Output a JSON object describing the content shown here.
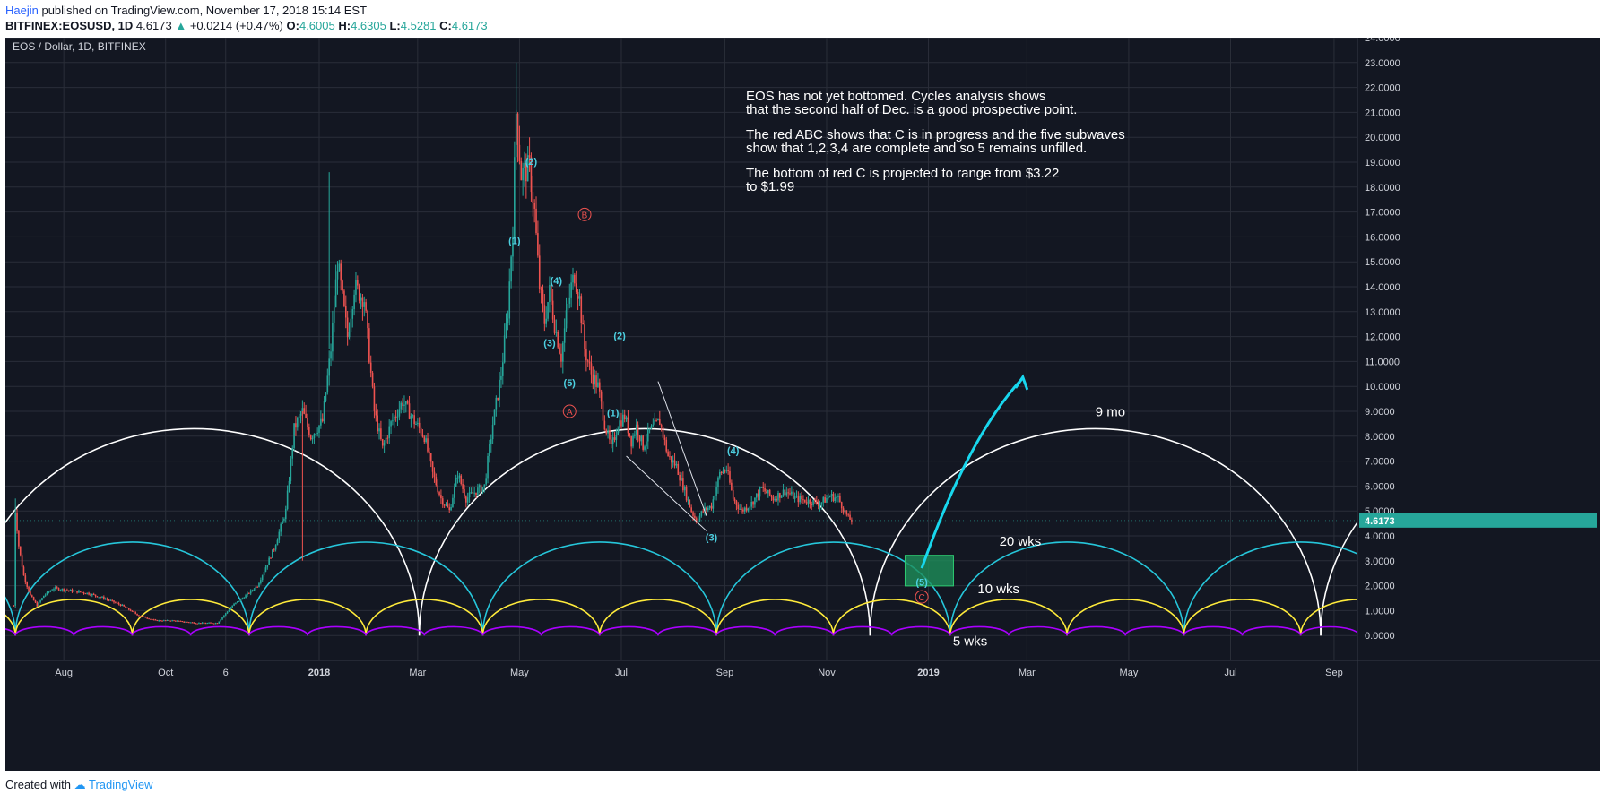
{
  "header": {
    "author": "Haejin",
    "published": " published on TradingView.com, November 17, 2018 15:14 EST",
    "symbol": "BITFINEX:EOSUSD, 1D",
    "price": "4.6173",
    "change": "+0.0214 (+0.47%)",
    "o_label": "O:",
    "o_value": "4.6005",
    "h_label": "H:",
    "h_value": "4.6305",
    "l_label": "L:",
    "l_value": "4.5281",
    "c_label": "C:",
    "c_value": "4.6173"
  },
  "footer": {
    "created": "Created with",
    "brand": "TradingView"
  },
  "colors": {
    "background": "#131722",
    "grid": "#2a2e39",
    "up": "#26a69a",
    "down": "#ef5350",
    "cyan_label": "#4dd0e1",
    "red_label": "#ef5350",
    "cycle_9mo": "#ffffff",
    "cycle_20wk": "#26c6da",
    "cycle_10wk": "#ffeb3b",
    "cycle_5wk": "#aa00ff",
    "projection_arrow": "#18d7ee",
    "target_box": "#1e8e5a"
  },
  "chart_data": {
    "type": "candlestick",
    "title": "EOS / Dollar, 1D, BITFINEX",
    "ylim": [
      -1,
      24
    ],
    "y_ticks": [
      "24.0000",
      "23.0000",
      "22.0000",
      "21.0000",
      "20.0000",
      "19.0000",
      "18.0000",
      "17.0000",
      "16.0000",
      "15.0000",
      "14.0000",
      "13.0000",
      "12.0000",
      "11.0000",
      "10.0000",
      "9.0000",
      "8.0000",
      "7.0000",
      "6.0000",
      "5.0000",
      "4.0000",
      "3.0000",
      "2.0000",
      "1.0000",
      "0.0000"
    ],
    "x_ticks": [
      {
        "label": "Aug",
        "date": "2017-08-01"
      },
      {
        "label": "Oct",
        "date": "2017-10-01"
      },
      {
        "label": "6",
        "date": "2017-11-06"
      },
      {
        "label": "2018",
        "date": "2018-01-01"
      },
      {
        "label": "Mar",
        "date": "2018-03-01"
      },
      {
        "label": "May",
        "date": "2018-05-01"
      },
      {
        "label": "Jul",
        "date": "2018-07-01"
      },
      {
        "label": "Sep",
        "date": "2018-09-01"
      },
      {
        "label": "Nov",
        "date": "2018-11-01"
      },
      {
        "label": "2019",
        "date": "2019-01-01"
      },
      {
        "label": "Mar",
        "date": "2019-03-01"
      },
      {
        "label": "May",
        "date": "2019-05-01"
      },
      {
        "label": "Jul",
        "date": "2019-07-01"
      },
      {
        "label": "Sep",
        "date": "2019-09-01"
      }
    ],
    "last_price": "4.6173",
    "price_path": [
      [
        "2017-07-02",
        1.2
      ],
      [
        "2017-07-03",
        5.0
      ],
      [
        "2017-07-05",
        3.6
      ],
      [
        "2017-07-08",
        2.4
      ],
      [
        "2017-07-12",
        1.6
      ],
      [
        "2017-07-16",
        1.2
      ],
      [
        "2017-07-20",
        1.6
      ],
      [
        "2017-07-26",
        1.9
      ],
      [
        "2017-08-05",
        1.8
      ],
      [
        "2017-08-15",
        1.7
      ],
      [
        "2017-08-25",
        1.5
      ],
      [
        "2017-09-05",
        1.2
      ],
      [
        "2017-09-15",
        0.8
      ],
      [
        "2017-09-25",
        0.6
      ],
      [
        "2017-10-05",
        0.6
      ],
      [
        "2017-10-20",
        0.5
      ],
      [
        "2017-11-01",
        0.5
      ],
      [
        "2017-11-10",
        1.2
      ],
      [
        "2017-11-18",
        1.6
      ],
      [
        "2017-11-25",
        2.0
      ],
      [
        "2017-12-05",
        3.5
      ],
      [
        "2017-12-12",
        5.0
      ],
      [
        "2017-12-17",
        8.3
      ],
      [
        "2017-12-22",
        9.0
      ],
      [
        "2017-12-27",
        8.0
      ],
      [
        "2018-01-03",
        8.6
      ],
      [
        "2018-01-08",
        11.5
      ],
      [
        "2018-01-12",
        15.0
      ],
      [
        "2018-01-18",
        12.0
      ],
      [
        "2018-01-22",
        14.0
      ],
      [
        "2018-01-28",
        13.5
      ],
      [
        "2018-02-03",
        9.0
      ],
      [
        "2018-02-08",
        7.5
      ],
      [
        "2018-02-13",
        8.5
      ],
      [
        "2018-02-20",
        9.4
      ],
      [
        "2018-02-27",
        8.6
      ],
      [
        "2018-03-05",
        8.0
      ],
      [
        "2018-03-10",
        6.5
      ],
      [
        "2018-03-15",
        5.5
      ],
      [
        "2018-03-20",
        5.0
      ],
      [
        "2018-03-25",
        6.5
      ],
      [
        "2018-03-30",
        5.5
      ],
      [
        "2018-04-05",
        5.8
      ],
      [
        "2018-04-10",
        6.0
      ],
      [
        "2018-04-15",
        8.5
      ],
      [
        "2018-04-20",
        10.5
      ],
      [
        "2018-04-24",
        13.0
      ],
      [
        "2018-04-27",
        16.5
      ],
      [
        "2018-04-29",
        21.0
      ],
      [
        "2018-05-02",
        18.5
      ],
      [
        "2018-05-07",
        18.8
      ],
      [
        "2018-05-10",
        17.0
      ],
      [
        "2018-05-13",
        14.0
      ],
      [
        "2018-05-16",
        12.6
      ],
      [
        "2018-05-19",
        13.8
      ],
      [
        "2018-05-22",
        12.5
      ],
      [
        "2018-05-26",
        11.2
      ],
      [
        "2018-05-29",
        12.8
      ],
      [
        "2018-06-01",
        14.0
      ],
      [
        "2018-06-03",
        14.5
      ],
      [
        "2018-06-06",
        13.5
      ],
      [
        "2018-06-09",
        11.5
      ],
      [
        "2018-06-13",
        10.5
      ],
      [
        "2018-06-17",
        10.0
      ],
      [
        "2018-06-21",
        8.5
      ],
      [
        "2018-06-25",
        7.5
      ],
      [
        "2018-06-29",
        8.5
      ],
      [
        "2018-07-03",
        8.8
      ],
      [
        "2018-07-07",
        7.8
      ],
      [
        "2018-07-10",
        8.4
      ],
      [
        "2018-07-14",
        7.6
      ],
      [
        "2018-07-18",
        8.2
      ],
      [
        "2018-07-24",
        8.6
      ],
      [
        "2018-07-29",
        7.2
      ],
      [
        "2018-08-03",
        6.8
      ],
      [
        "2018-08-08",
        5.8
      ],
      [
        "2018-08-12",
        5.0
      ],
      [
        "2018-08-15",
        4.6
      ],
      [
        "2018-08-19",
        5.0
      ],
      [
        "2018-08-24",
        5.2
      ],
      [
        "2018-08-29",
        6.5
      ],
      [
        "2018-09-02",
        6.7
      ],
      [
        "2018-09-06",
        5.5
      ],
      [
        "2018-09-11",
        5.0
      ],
      [
        "2018-09-17",
        5.3
      ],
      [
        "2018-09-23",
        5.9
      ],
      [
        "2018-09-30",
        5.5
      ],
      [
        "2018-10-07",
        5.8
      ],
      [
        "2018-10-14",
        5.5
      ],
      [
        "2018-10-21",
        5.4
      ],
      [
        "2018-10-28",
        5.3
      ],
      [
        "2018-11-03",
        5.6
      ],
      [
        "2018-11-08",
        5.5
      ],
      [
        "2018-11-14",
        4.7
      ],
      [
        "2018-11-17",
        4.6173
      ]
    ],
    "spikes": [
      {
        "date": "2017-07-03",
        "high": 5.5
      },
      {
        "date": "2017-12-22",
        "low": 3.0
      },
      {
        "date": "2018-01-07",
        "high": 18.6
      },
      {
        "date": "2018-04-29",
        "high": 23.0
      }
    ],
    "cycles": [
      {
        "name": "9 mo",
        "start": "2017-06-05",
        "period_days": 270,
        "height": 8.3
      },
      {
        "name": "20 wks",
        "start": "2017-07-03",
        "period_days": 140,
        "height": 3.75
      },
      {
        "name": "10 wks",
        "start": "2017-07-03",
        "period_days": 70,
        "height": 1.45
      },
      {
        "name": "5 wks",
        "start": "2017-07-03",
        "period_days": 35,
        "height": 0.35
      }
    ],
    "cycle_labels": [
      {
        "text": "9 mo",
        "date": "2019-04-20",
        "y": 8.8
      },
      {
        "text": "20 wks",
        "date": "2019-02-25",
        "y": 3.6
      },
      {
        "text": "10 wks",
        "date": "2019-02-12",
        "y": 1.7
      },
      {
        "text": "5 wks",
        "date": "2019-01-26",
        "y": -0.4
      }
    ],
    "wave_labels_cyan": [
      {
        "text": "(1)",
        "date": "2018-04-28",
        "y": 15.7
      },
      {
        "text": "(2)",
        "date": "2018-05-08",
        "y": 18.9
      },
      {
        "text": "(3)",
        "date": "2018-05-19",
        "y": 11.6
      },
      {
        "text": "(4)",
        "date": "2018-05-23",
        "y": 14.1
      },
      {
        "text": "(5)",
        "date": "2018-05-31",
        "y": 10.0
      },
      {
        "text": "(1)",
        "date": "2018-06-26",
        "y": 8.8
      },
      {
        "text": "(2)",
        "date": "2018-06-30",
        "y": 11.9
      },
      {
        "text": "(3)",
        "date": "2018-08-24",
        "y": 3.8
      },
      {
        "text": "(4)",
        "date": "2018-09-06",
        "y": 7.3
      },
      {
        "text": "(5)",
        "date": "2018-12-28",
        "y": 2.0
      }
    ],
    "wave_labels_red": [
      {
        "text": "A",
        "date": "2018-05-31",
        "y": 9.0
      },
      {
        "text": "B",
        "date": "2018-06-09",
        "y": 16.9
      },
      {
        "text": "C",
        "date": "2018-12-28",
        "y": 1.55
      }
    ],
    "trendlines": [
      {
        "from": [
          "2018-07-04",
          7.2
        ],
        "to": [
          "2018-08-21",
          4.2
        ]
      },
      {
        "from": [
          "2018-07-23",
          10.2
        ],
        "to": [
          "2018-08-21",
          4.8
        ]
      }
    ],
    "target_box": {
      "from_date": "2018-12-18",
      "to_date": "2019-01-16",
      "top": 3.22,
      "bottom": 1.99
    },
    "arrow": {
      "from": [
        "2018-12-28",
        2.7
      ],
      "mid": [
        "2019-01-25",
        6.0
      ],
      "to": [
        "2019-02-26",
        10.3
      ]
    },
    "annotation": [
      "EOS has not yet bottomed. Cycles analysis shows",
      "that the second half of Dec. is a good prospective point.",
      "",
      "The red ABC shows that C is in progress and the five subwaves",
      "show that 1,2,3,4 are complete and so 5 remains unfilled.",
      "",
      "The bottom of red C is projected to range from $3.22",
      "to $1.99"
    ]
  }
}
